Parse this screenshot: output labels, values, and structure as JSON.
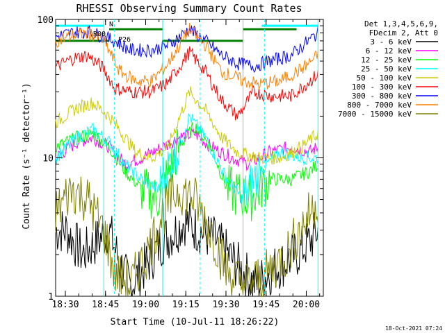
{
  "chart_data": {
    "type": "line",
    "title": "RHESSI Observing Summary Count Rates",
    "xlabel": "Start Time (10-Jul-11 18:26:22)",
    "ylabel": "Count Rate (s⁻¹ detector⁻¹)",
    "yscale": "log",
    "ylim": [
      1,
      100
    ],
    "xlim_minutes": [
      0,
      100
    ],
    "x_ticks": [
      "18:30",
      "18:45",
      "19:00",
      "19:15",
      "19:30",
      "19:45",
      "20:00"
    ],
    "y_ticks": [
      "1",
      "10",
      "100"
    ],
    "legend_header": [
      "Det 1,3,4,5,6,9,",
      "FDecim 2, Att 0"
    ],
    "legend_position": "right",
    "footer_timestamp": "18-Oct-2021 07:24",
    "annotations": {
      "decimation_label": "R00",
      "attenuator_label": "N",
      "saa_label": "P26"
    },
    "series": [
      {
        "name": "3 - 6 keV",
        "color": "#000000",
        "x": [
          4,
          10,
          20,
          25,
          28,
          35,
          40,
          45,
          48,
          60,
          70,
          75,
          80,
          90,
          95,
          98
        ],
        "y": [
          3,
          2,
          3,
          1.5,
          1.2,
          1.8,
          2.5,
          3,
          3.5,
          2.5,
          1.5,
          1.2,
          1.5,
          2,
          2.5,
          3
        ]
      },
      {
        "name": "6 - 12 keV",
        "color": "#ff00ff",
        "x": [
          0,
          8,
          14,
          20,
          26,
          32,
          40,
          46,
          52,
          58,
          66,
          72,
          80,
          88,
          95,
          98
        ],
        "y": [
          10,
          13,
          14,
          12,
          9,
          10,
          12,
          14,
          15,
          12,
          10,
          9,
          11,
          12,
          11,
          12
        ]
      },
      {
        "name": "12 - 25 keV",
        "color": "#00ff00",
        "x": [
          0,
          8,
          14,
          20,
          26,
          32,
          38,
          46,
          52,
          58,
          64,
          72,
          80,
          88,
          95,
          98
        ],
        "y": [
          12,
          14,
          15,
          12,
          8,
          6,
          5,
          12,
          17,
          12,
          6,
          5,
          7,
          7,
          8,
          9
        ]
      },
      {
        "name": "25 - 50 keV",
        "color": "#00ffff",
        "x": [
          0,
          8,
          14,
          20,
          26,
          32,
          38,
          46,
          50,
          56,
          64,
          70,
          76,
          84,
          92,
          98
        ],
        "y": [
          10,
          14,
          16,
          13,
          9,
          7,
          6,
          12,
          20,
          14,
          7,
          5,
          8,
          11,
          10,
          10
        ]
      },
      {
        "name": "50 - 100 keV",
        "color": "#cccc00",
        "x": [
          0,
          8,
          14,
          20,
          26,
          30,
          36,
          42,
          50,
          56,
          62,
          68,
          76,
          84,
          92,
          98
        ],
        "y": [
          18,
          23,
          25,
          20,
          14,
          11,
          10,
          12,
          30,
          22,
          14,
          11,
          10,
          10,
          12,
          15
        ]
      },
      {
        "name": "100 - 300 keV",
        "color": "#ff0000",
        "x": [
          0,
          6,
          12,
          18,
          22,
          28,
          36,
          42,
          50,
          56,
          62,
          68,
          74,
          80,
          88,
          98
        ],
        "y": [
          45,
          52,
          55,
          44,
          32,
          30,
          30,
          35,
          58,
          42,
          26,
          20,
          30,
          28,
          28,
          40
        ]
      },
      {
        "name": "300 - 800 keV",
        "color": "#0000ff",
        "x": [
          0,
          6,
          12,
          18,
          22,
          28,
          36,
          42,
          50,
          56,
          62,
          68,
          74,
          80,
          88,
          98
        ],
        "y": [
          75,
          80,
          82,
          75,
          70,
          60,
          60,
          65,
          85,
          70,
          55,
          48,
          46,
          50,
          55,
          80
        ]
      },
      {
        "name": "800 - 7000 keV",
        "color": "#ff8000",
        "x": [
          0,
          6,
          12,
          18,
          24,
          30,
          36,
          42,
          50,
          56,
          62,
          70,
          76,
          84,
          92,
          98
        ],
        "y": [
          70,
          76,
          80,
          70,
          42,
          36,
          36,
          48,
          85,
          65,
          42,
          36,
          34,
          36,
          44,
          55
        ]
      },
      {
        "name": "7000 - 15000 keV",
        "color": "#808000",
        "x": [
          0,
          6,
          12,
          18,
          22,
          28,
          34,
          40,
          46,
          52,
          58,
          64,
          70,
          78,
          86,
          98
        ],
        "y": [
          4,
          6,
          5,
          3,
          1.5,
          1.2,
          2,
          4,
          6,
          5,
          3,
          1.5,
          1.2,
          1.4,
          2,
          5
        ]
      }
    ],
    "flag_bars": [
      {
        "color": "#008000",
        "x": [
          0,
          20
        ],
        "y": 70
      },
      {
        "color": "#008000",
        "x": [
          20,
          40
        ],
        "y": 85
      },
      {
        "color": "#008000",
        "x": [
          40,
          70
        ],
        "y": 70
      },
      {
        "color": "#008000",
        "x": [
          70,
          90
        ],
        "y": 85
      },
      {
        "color": "#00ffff",
        "x": [
          0,
          18
        ],
        "y": 90
      },
      {
        "color": "#00ffff",
        "x": [
          77,
          98
        ],
        "y": 90
      }
    ],
    "flag_lines_minutes": [
      18,
      22,
      40,
      54,
      70,
      78,
      98
    ]
  }
}
